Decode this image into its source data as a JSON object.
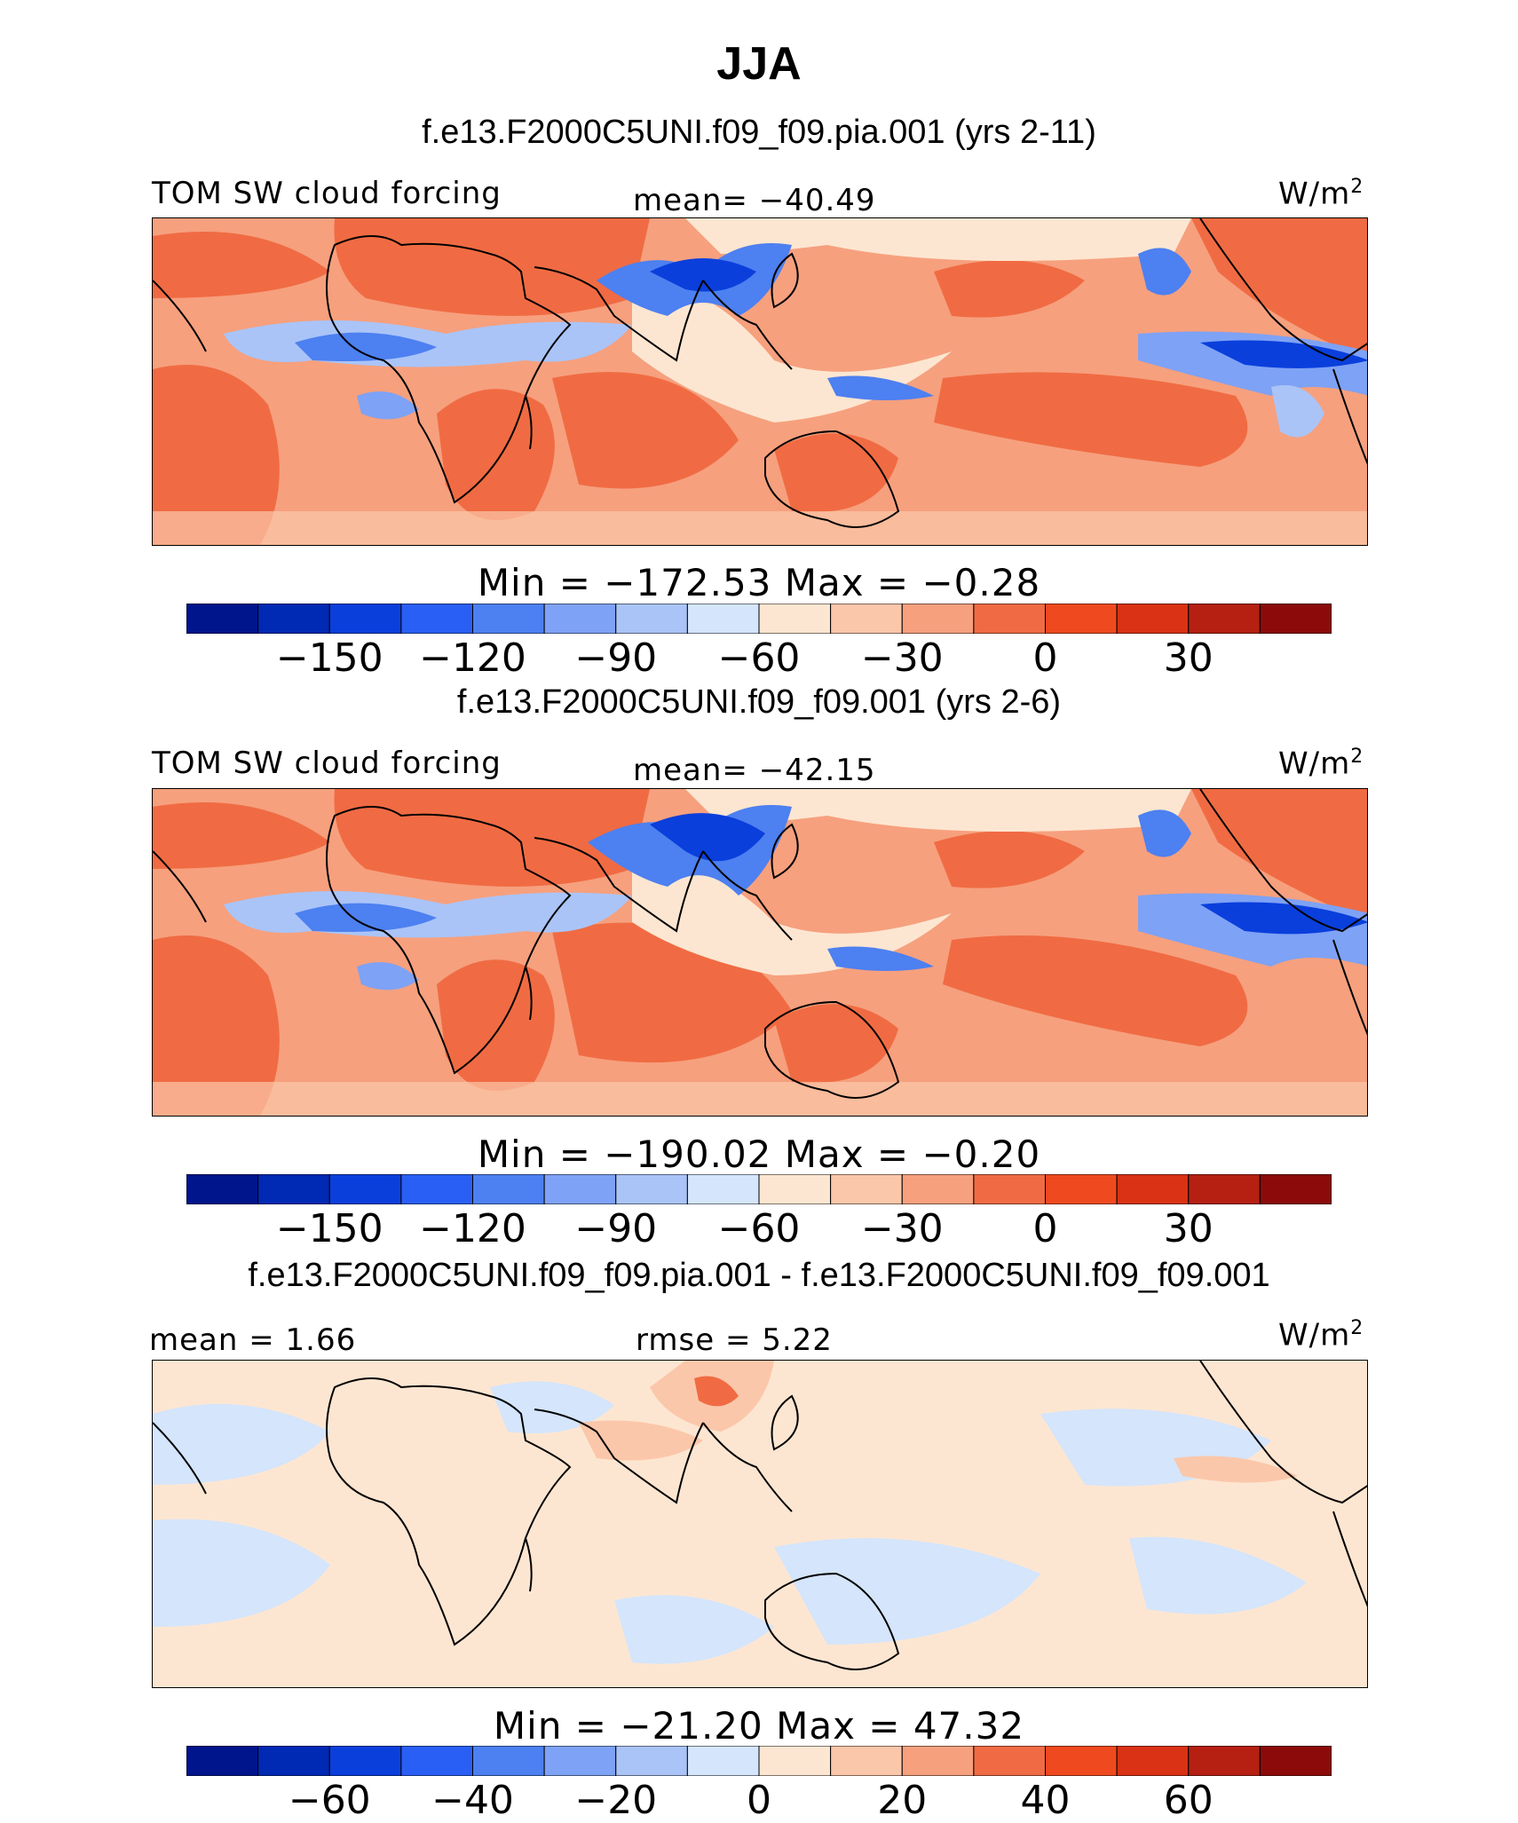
{
  "title": "JJA",
  "variable_label": "TOM SW cloud forcing",
  "units": "W/m",
  "units_sup": "2",
  "chart_data": [
    {
      "type": "heatmap",
      "case": "f.e13.F2000C5UNI.f09_f09.pia.001 (yrs 2-11)",
      "stat_left": "TOM SW cloud forcing",
      "stat_center": "mean= −40.49",
      "min": -172.53,
      "max": -0.28,
      "minmax_text": "Min = −172.53 Max = −0.28",
      "colorbar_levels": [
        -165,
        -150,
        -135,
        -120,
        -105,
        -90,
        -75,
        -60,
        -45,
        -30,
        -15,
        0,
        15,
        30,
        45
      ],
      "colorbar_tick_labels": [
        "−150",
        "−120",
        "−90",
        "−60",
        "−30",
        "0",
        "30"
      ],
      "colorbar_tick_values": [
        -150,
        -120,
        -90,
        -60,
        -30,
        0,
        30
      ]
    },
    {
      "type": "heatmap",
      "case": "f.e13.F2000C5UNI.f09_f09.001 (yrs 2-6)",
      "stat_left": "TOM SW cloud forcing",
      "stat_center": "mean= −42.15",
      "min": -190.02,
      "max": -0.2,
      "minmax_text": "Min = −190.02 Max = −0.20",
      "colorbar_levels": [
        -165,
        -150,
        -135,
        -120,
        -105,
        -90,
        -75,
        -60,
        -45,
        -30,
        -15,
        0,
        15,
        30,
        45
      ],
      "colorbar_tick_labels": [
        "−150",
        "−120",
        "−90",
        "−60",
        "−30",
        "0",
        "30"
      ],
      "colorbar_tick_values": [
        -150,
        -120,
        -90,
        -60,
        -30,
        0,
        30
      ]
    },
    {
      "type": "heatmap",
      "case": "f.e13.F2000C5UNI.f09_f09.pia.001 - f.e13.F2000C5UNI.f09_f09.001",
      "stat_left": "mean =    1.66",
      "stat_center": "rmse =    5.22",
      "min": -21.2,
      "max": 47.32,
      "minmax_text": "Min = −21.20 Max =   47.32",
      "colorbar_levels": [
        -70,
        -60,
        -50,
        -40,
        -30,
        -20,
        -10,
        0,
        10,
        20,
        30,
        40,
        50,
        60,
        70
      ],
      "colorbar_tick_labels": [
        "−60",
        "−40",
        "−20",
        "0",
        "20",
        "40",
        "60"
      ],
      "colorbar_tick_values": [
        -60,
        -40,
        -20,
        0,
        20,
        40,
        60
      ]
    }
  ],
  "palette": [
    "#00148c",
    "#0029b4",
    "#0a3fdc",
    "#2a5ff5",
    "#4d80f0",
    "#7ea2f5",
    "#aac4f8",
    "#d4e5fc",
    "#fde6d1",
    "#fbc7aa",
    "#f6a07e",
    "#f06b43",
    "#ef4a1f",
    "#d93214",
    "#b52012",
    "#8c0a0a"
  ]
}
